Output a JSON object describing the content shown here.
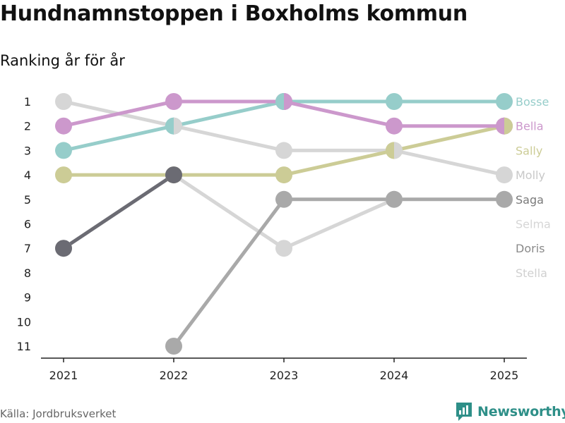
{
  "title": "Hundnamnstoppen i Boxholms kommun",
  "subtitle": "Ranking år för år",
  "source": "Källa: Jordbruksverket",
  "brand": "Newsworthy",
  "chart_data": {
    "type": "line",
    "x": [
      "2021",
      "2022",
      "2023",
      "2024",
      "2025"
    ],
    "y_ticks": [
      "1",
      "2",
      "3",
      "4",
      "5",
      "6",
      "7",
      "8",
      "9",
      "10",
      "11"
    ],
    "ylim": [
      1,
      11
    ],
    "y_reversed": true,
    "grid": false,
    "legend": "right-end-labels",
    "series": [
      {
        "name": "Bosse",
        "color": "#96cdca",
        "values": [
          3,
          2,
          1,
          1,
          1
        ]
      },
      {
        "name": "Bella",
        "color": "#cc98cc",
        "values": [
          2,
          1,
          1,
          2,
          2
        ]
      },
      {
        "name": "Sally",
        "color": "#cccc96",
        "values": [
          4,
          4,
          4,
          3,
          2
        ]
      },
      {
        "name": "Molly",
        "color": "#d6d6d6",
        "values": [
          1,
          2,
          3,
          3,
          4
        ]
      },
      {
        "name": "Saga",
        "color": "#a9a9a9",
        "values": [
          null,
          11,
          5,
          5,
          5
        ]
      },
      {
        "name": "Selma",
        "color": "#d6d6d6",
        "values": [
          null,
          null,
          null,
          null,
          null
        ]
      },
      {
        "name": "Doris",
        "color": "#6b6b73",
        "values": [
          7,
          4,
          null,
          null,
          null
        ]
      },
      {
        "name": "Stella",
        "color": "#d6d6d6",
        "values": [
          7,
          4,
          7,
          5,
          null
        ]
      }
    ],
    "end_labels": [
      {
        "name": "Bosse",
        "rank": 1,
        "color": "#96cdca"
      },
      {
        "name": "Bella",
        "rank": 2,
        "color": "#cc98cc"
      },
      {
        "name": "Sally",
        "rank": 3,
        "color": "#cccc96"
      },
      {
        "name": "Molly",
        "rank": 4,
        "color": "#c8c8c8"
      },
      {
        "name": "Saga",
        "rank": 5,
        "color": "#7a7a7a"
      },
      {
        "name": "Selma",
        "rank": 6,
        "color": "#d6d6d6"
      },
      {
        "name": "Doris",
        "rank": 7,
        "color": "#8a8a8a"
      },
      {
        "name": "Stella",
        "rank": 8,
        "color": "#d0d0d0"
      }
    ],
    "split_dots": [
      {
        "x": "2022",
        "rank": 2,
        "left": "#96cdca",
        "right": "#d6d6d6"
      },
      {
        "x": "2023",
        "rank": 1,
        "left": "#96cdca",
        "right": "#cc98cc"
      },
      {
        "x": "2024",
        "rank": 3,
        "left": "#cccc96",
        "right": "#d6d6d6"
      },
      {
        "x": "2025",
        "rank": 2,
        "left": "#cc98cc",
        "right": "#cccc96"
      }
    ]
  }
}
